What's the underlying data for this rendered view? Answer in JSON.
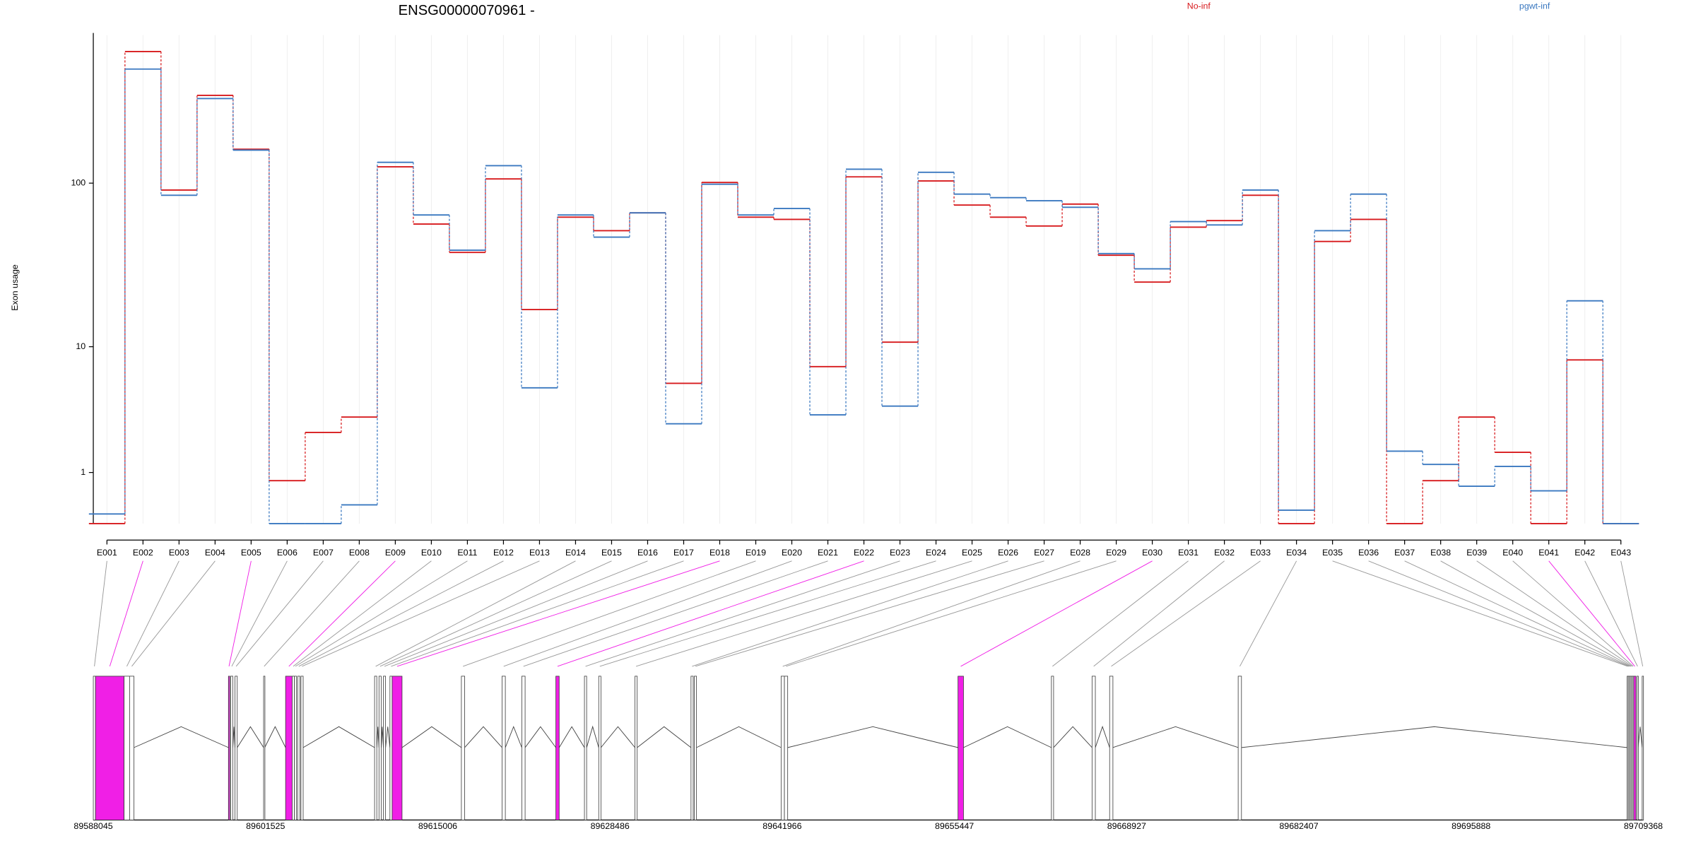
{
  "chart_data": [
    {
      "type": "step",
      "title": "ENSG00000070961 -",
      "y_label": "Exon usage",
      "yscale": "log1p",
      "ylim": [
        0,
        750
      ],
      "yticks": [
        1,
        10,
        100
      ],
      "grid": true,
      "categories": [
        "E001",
        "E002",
        "E003",
        "E004",
        "E005",
        "E006",
        "E007",
        "E008",
        "E009",
        "E010",
        "E011",
        "E012",
        "E013",
        "E014",
        "E015",
        "E016",
        "E017",
        "E018",
        "E019",
        "E020",
        "E021",
        "E022",
        "E023",
        "E024",
        "E025",
        "E026",
        "E027",
        "E028",
        "E029",
        "E030",
        "E031",
        "E032",
        "E033",
        "E034",
        "E035",
        "E036",
        "E037",
        "E038",
        "E039",
        "E040",
        "E041",
        "E042",
        "E043"
      ],
      "series": [
        {
          "name": "No-inf",
          "color": "#d7191c",
          "values": [
            0,
            600,
            91,
            331,
            159,
            0.79,
            2.44,
            3.24,
            125,
            57,
            38.5,
            106,
            17.2,
            62.7,
            52,
            66.5,
            5.7,
            101,
            62.7,
            60.8,
            7.4,
            109,
            10.7,
            103,
            74,
            62.7,
            55.5,
            75,
            37,
            25.4,
            54.6,
            59.8,
            84.7,
            0,
            44.8,
            60.8,
            0,
            0.79,
            3.24,
            1.63,
            0,
            8.2,
            0
          ]
        },
        {
          "name": "pgwt-inf",
          "color": "#3a78c0",
          "values": [
            0.14,
            473,
            84.7,
            317,
            157,
            0,
            0,
            0.29,
            133,
            64.6,
            39.7,
            127,
            5.3,
            64.6,
            47.6,
            66.5,
            2.87,
            98.5,
            64.6,
            70.6,
            3.37,
            121,
            3.92,
            116,
            86,
            82,
            78.6,
            71.8,
            37.9,
            30.6,
            59,
            56.3,
            91,
            0.2,
            52,
            86,
            1.67,
            1.23,
            0.66,
            1.17,
            0.56,
            19.5,
            0
          ]
        }
      ]
    },
    {
      "type": "gene",
      "xlim": [
        89588045,
        89709368
      ],
      "xticks": [
        89588045,
        89601525,
        89615006,
        89628486,
        89641966,
        89655447,
        89668927,
        89682407,
        89695888,
        89709368
      ],
      "exons": [
        {
          "start": 89588045,
          "end": 89588217,
          "color": "#ffffff"
        },
        {
          "start": 89588217,
          "end": 89590453,
          "color": "#f01fe6"
        },
        {
          "start": 89590453,
          "end": 89590883,
          "color": "#ffffff"
        },
        {
          "start": 89590883,
          "end": 89591227,
          "color": "#ffffff"
        },
        {
          "start": 89598623,
          "end": 89598709,
          "color": "#f01fe6"
        },
        {
          "start": 89598795,
          "end": 89598967,
          "color": "#ffffff"
        },
        {
          "start": 89599139,
          "end": 89599311,
          "color": "#ffffff"
        },
        {
          "start": 89601375,
          "end": 89601461,
          "color": "#ffffff"
        },
        {
          "start": 89603095,
          "end": 89603611,
          "color": "#f01fe6"
        },
        {
          "start": 89603611,
          "end": 89603783,
          "color": "#ffffff"
        },
        {
          "start": 89603783,
          "end": 89603955,
          "color": "#ffffff"
        },
        {
          "start": 89604041,
          "end": 89604213,
          "color": "#ffffff"
        },
        {
          "start": 89604299,
          "end": 89604471,
          "color": "#ffffff"
        },
        {
          "start": 89610061,
          "end": 89610233,
          "color": "#ffffff"
        },
        {
          "start": 89610405,
          "end": 89610577,
          "color": "#ffffff"
        },
        {
          "start": 89610749,
          "end": 89610921,
          "color": "#ffffff"
        },
        {
          "start": 89611265,
          "end": 89611437,
          "color": "#ffffff"
        },
        {
          "start": 89611437,
          "end": 89612211,
          "color": "#f01fe6"
        },
        {
          "start": 89616855,
          "end": 89617113,
          "color": "#ffffff"
        },
        {
          "start": 89620037,
          "end": 89620295,
          "color": "#ffffff"
        },
        {
          "start": 89621585,
          "end": 89621843,
          "color": "#ffffff"
        },
        {
          "start": 89624251,
          "end": 89624509,
          "color": "#f01fe6"
        },
        {
          "start": 89626487,
          "end": 89626659,
          "color": "#ffffff"
        },
        {
          "start": 89627605,
          "end": 89627777,
          "color": "#ffffff"
        },
        {
          "start": 89630443,
          "end": 89630615,
          "color": "#ffffff"
        },
        {
          "start": 89634829,
          "end": 89635001,
          "color": "#ffffff"
        },
        {
          "start": 89635087,
          "end": 89635259,
          "color": "#ffffff"
        },
        {
          "start": 89641881,
          "end": 89642139,
          "color": "#ffffff"
        },
        {
          "start": 89642139,
          "end": 89642397,
          "color": "#ffffff"
        },
        {
          "start": 89655727,
          "end": 89656157,
          "color": "#f01fe6"
        },
        {
          "start": 89663037,
          "end": 89663209,
          "color": "#ffffff"
        },
        {
          "start": 89666219,
          "end": 89666477,
          "color": "#ffffff"
        },
        {
          "start": 89667595,
          "end": 89667853,
          "color": "#ffffff"
        },
        {
          "start": 89677657,
          "end": 89677915,
          "color": "#ffffff"
        },
        {
          "start": 89708101,
          "end": 89708187,
          "color": "#ffffff"
        },
        {
          "start": 89708187,
          "end": 89708273,
          "color": "#ffffff"
        },
        {
          "start": 89708273,
          "end": 89708359,
          "color": "#ffffff"
        },
        {
          "start": 89708359,
          "end": 89708445,
          "color": "#ffffff"
        },
        {
          "start": 89708445,
          "end": 89708531,
          "color": "#ffffff"
        },
        {
          "start": 89708531,
          "end": 89708617,
          "color": "#ffffff"
        },
        {
          "start": 89708617,
          "end": 89708789,
          "color": "#f01fe6"
        },
        {
          "start": 89708875,
          "end": 89708961,
          "color": "#ffffff"
        },
        {
          "start": 89709280,
          "end": 89709368,
          "color": "#ffffff"
        }
      ]
    }
  ]
}
